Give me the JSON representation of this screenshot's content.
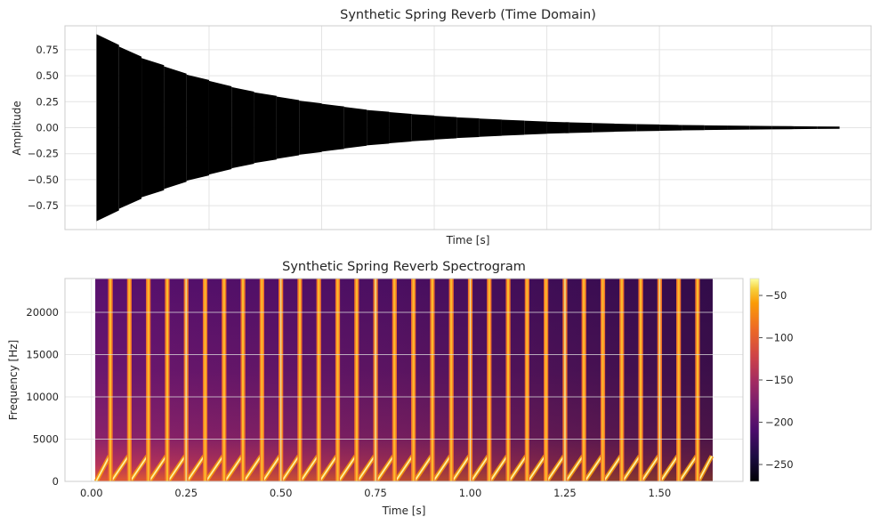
{
  "chart_data": [
    {
      "type": "line",
      "title": "Synthetic Spring Reverb (Time Domain)",
      "xlabel": "Time [s]",
      "ylabel": "Amplitude",
      "xlim": [
        -0.07,
        1.72
      ],
      "ylim": [
        -0.98,
        0.98
      ],
      "x_ticks": [
        0.0,
        0.25,
        0.5,
        0.75,
        1.0,
        1.25,
        1.5
      ],
      "y_ticks": [
        -0.75,
        -0.5,
        -0.25,
        0.0,
        0.25,
        0.5,
        0.75
      ],
      "y_tick_labels": [
        "−0.75",
        "−0.50",
        "−0.25",
        "0.00",
        "0.25",
        "0.50",
        "0.75"
      ],
      "x_tick_labels_visible": false,
      "grid": true,
      "series": [
        {
          "color": "#000000",
          "description": "dense oscillation, echo bursts every 0.05 s with decaying envelope",
          "burst_period": 0.05,
          "duration": 1.65,
          "envelope": {
            "t": [
              0.0,
              0.05,
              0.1,
              0.15,
              0.2,
              0.25,
              0.3,
              0.35,
              0.4,
              0.45,
              0.5,
              0.55,
              0.6,
              0.65,
              0.7,
              0.75,
              0.8,
              0.85,
              0.9,
              0.95,
              1.0,
              1.05,
              1.1,
              1.15,
              1.2,
              1.25,
              1.3,
              1.35,
              1.4,
              1.45,
              1.5,
              1.55,
              1.6
            ],
            "amp": [
              0.9,
              0.78,
              0.67,
              0.59,
              0.51,
              0.45,
              0.39,
              0.34,
              0.3,
              0.26,
              0.23,
              0.2,
              0.17,
              0.15,
              0.13,
              0.115,
              0.1,
              0.088,
              0.077,
              0.067,
              0.058,
              0.051,
              0.045,
              0.039,
              0.034,
              0.03,
              0.026,
              0.023,
              0.02,
              0.018,
              0.016,
              0.014,
              0.012
            ]
          }
        }
      ]
    },
    {
      "type": "heatmap",
      "title": "Synthetic Spring Reverb Spectrogram",
      "xlabel": "Time [s]",
      "ylabel": "Frequency [Hz]",
      "xlim": [
        -0.07,
        1.72
      ],
      "ylim": [
        0,
        24000
      ],
      "x_ticks": [
        0.0,
        0.25,
        0.5,
        0.75,
        1.0,
        1.25,
        1.5
      ],
      "x_tick_labels": [
        "0.00",
        "0.25",
        "0.50",
        "0.75",
        "1.00",
        "1.25",
        "1.50"
      ],
      "y_ticks": [
        0,
        5000,
        10000,
        15000,
        20000
      ],
      "y_tick_labels": [
        "0",
        "5000",
        "10000",
        "15000",
        "20000"
      ],
      "data_time_range": [
        0.01,
        1.64
      ],
      "colormap": "inferno",
      "colorbar": {
        "range": [
          -270,
          -30
        ],
        "ticks": [
          -250,
          -200,
          -150,
          -100,
          -50
        ],
        "tick_labels": [
          "−250",
          "−200",
          "−150",
          "−100",
          "−50"
        ]
      },
      "stripe_period_s": 0.05,
      "stripe_times": [
        0.05,
        0.1,
        0.15,
        0.2,
        0.25,
        0.3,
        0.35,
        0.4,
        0.45,
        0.5,
        0.55,
        0.6,
        0.65,
        0.7,
        0.75,
        0.8,
        0.85,
        0.9,
        0.95,
        1.0,
        1.05,
        1.1,
        1.15,
        1.2,
        1.25,
        1.3,
        1.35,
        1.4,
        1.45,
        1.5,
        1.55,
        1.6
      ],
      "chirp_max_hz": 3000,
      "grid": true
    }
  ]
}
